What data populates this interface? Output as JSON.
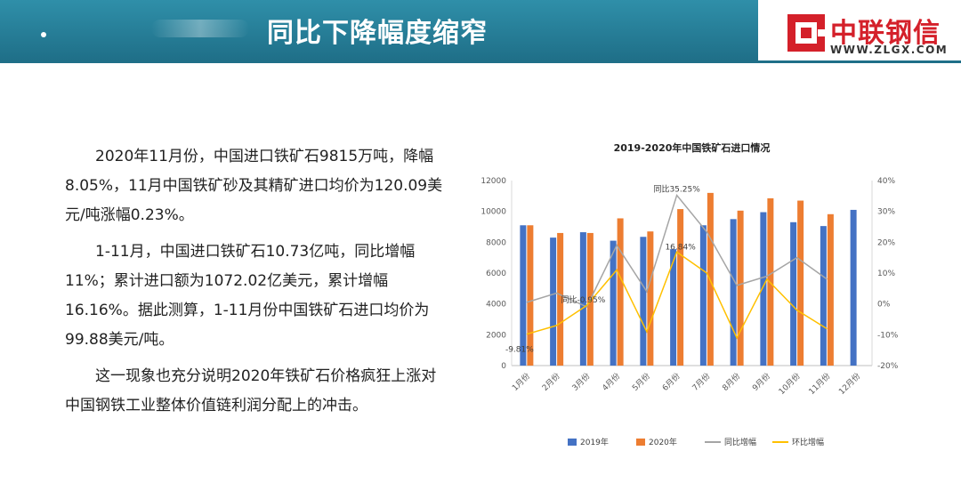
{
  "header": {
    "title": "同比下降幅度缩窄",
    "logo_name": "中联钢信",
    "logo_url": "WWW.ZLGX.COM",
    "colors": {
      "band": "#1f6f88",
      "logo": "#d4202a"
    }
  },
  "body_text": {
    "para1": "2020年11月份，中国进口铁矿石9815万吨，降幅8.05%，11月中国铁矿砂及其精矿进口均价为120.09美元/吨涨幅0.23%。",
    "para2": "1-11月，中国进口铁矿石10.73亿吨，同比增幅11%；累计进口额为1072.02亿美元，累计增幅16.16%。据此测算，1-11月份中国铁矿石进口均价为99.88美元/吨。",
    "para3": "这一现象也充分说明2020年铁矿石价格疯狂上涨对中国钢铁工业整体价值链利润分配上的冲击。"
  },
  "chart_data": {
    "type": "bar",
    "title": "2019-2020年中国铁矿石进口情况",
    "categories": [
      "1月份",
      "2月份",
      "3月份",
      "4月份",
      "5月份",
      "6月份",
      "7月份",
      "8月份",
      "9月份",
      "10月份",
      "11月份",
      "12月份"
    ],
    "series": [
      {
        "name": "2019年",
        "kind": "bar",
        "axis": "left",
        "color": "#4472c4",
        "values": [
          9100,
          8300,
          8650,
          8100,
          8350,
          7550,
          9100,
          9500,
          9950,
          9300,
          9050,
          10100
        ]
      },
      {
        "name": "2020年",
        "kind": "bar",
        "axis": "left",
        "color": "#ed7d31",
        "values": [
          9100,
          8600,
          8600,
          9550,
          8700,
          10150,
          11200,
          10050,
          10850,
          10700,
          9820,
          null
        ]
      },
      {
        "name": "同比增幅",
        "kind": "line",
        "axis": "right",
        "color": "#a5a5a5",
        "values": [
          0.5,
          3.5,
          -0.95,
          19,
          4,
          35.25,
          23.3,
          6,
          9,
          15,
          8,
          null
        ]
      },
      {
        "name": "环比增幅",
        "kind": "line",
        "axis": "right",
        "color": "#ffc000",
        "values": [
          -9.81,
          -7,
          -0.5,
          11,
          -9,
          16.84,
          10,
          -11,
          8,
          -2,
          -8.05,
          null
        ]
      }
    ],
    "annotations": [
      {
        "text": "同比35.25%",
        "series": "同比增幅",
        "index": 5
      },
      {
        "text": "16.84%",
        "series": "环比增幅",
        "index": 5
      },
      {
        "text": "同比-0.95%",
        "series": "同比增幅",
        "index": 2
      },
      {
        "text": "-9.81%",
        "series": "环比增幅",
        "index": 0
      }
    ],
    "ylim_left": [
      0,
      12000
    ],
    "yticks_left": [
      "0",
      "2000",
      "4000",
      "6000",
      "8000",
      "10000",
      "12000"
    ],
    "ylim_right": [
      -20,
      40
    ],
    "yticks_right": [
      "-20%",
      "-10%",
      "0%",
      "10%",
      "20%",
      "30%",
      "40%"
    ],
    "legend_position": "bottom",
    "grid": false
  }
}
